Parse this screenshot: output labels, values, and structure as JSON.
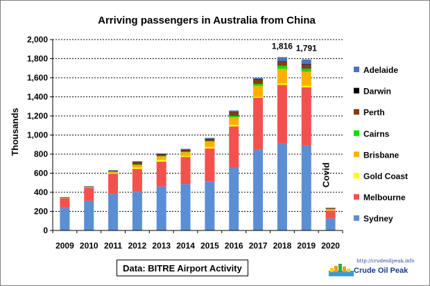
{
  "chart_data": {
    "type": "bar",
    "stacked": true,
    "title": "Arriving passengers in Australia from China",
    "ylabel": "Thousands",
    "xlabel": "",
    "ylim": [
      0,
      2000
    ],
    "yticks": [
      "0",
      "200",
      "400",
      "600",
      "800",
      "1,000",
      "1,200",
      "1,400",
      "1,600",
      "1,800",
      "2,000"
    ],
    "categories": [
      "2009",
      "2010",
      "2011",
      "2012",
      "2013",
      "2014",
      "2015",
      "2016",
      "2017",
      "2018",
      "2019",
      "2020"
    ],
    "series": [
      {
        "name": "Sydney",
        "color": "#5b8fd4",
        "values": [
          235,
          310,
          385,
          405,
          460,
          485,
          515,
          655,
          845,
          910,
          890,
          125
        ]
      },
      {
        "name": "Melbourne",
        "color": "#f4514e",
        "values": [
          105,
          140,
          210,
          240,
          260,
          285,
          345,
          435,
          545,
          615,
          610,
          85
        ]
      },
      {
        "name": "Gold Coast",
        "color": "#ffff00",
        "values": [
          3,
          3,
          5,
          15,
          20,
          10,
          15,
          15,
          10,
          15,
          15,
          3
        ]
      },
      {
        "name": "Brisbane",
        "color": "#ffb000",
        "values": [
          2,
          4,
          15,
          28,
          35,
          40,
          55,
          80,
          115,
          155,
          150,
          10
        ]
      },
      {
        "name": "Cairns",
        "color": "#00e000",
        "values": [
          0,
          1,
          2,
          3,
          5,
          5,
          8,
          15,
          20,
          30,
          30,
          3
        ]
      },
      {
        "name": "Perth",
        "color": "#8b3a0f",
        "values": [
          2,
          2,
          8,
          25,
          18,
          20,
          20,
          40,
          45,
          45,
          45,
          8
        ]
      },
      {
        "name": "Darwin",
        "color": "#000000",
        "values": [
          0,
          0,
          0,
          1,
          1,
          1,
          1,
          2,
          2,
          2,
          2,
          0
        ]
      },
      {
        "name": "Adelaide",
        "color": "#4a74c0",
        "values": [
          3,
          5,
          7,
          8,
          8,
          9,
          11,
          15,
          18,
          44,
          49,
          5
        ]
      }
    ],
    "data_labels": [
      {
        "category": "2018",
        "text": "1,816"
      },
      {
        "category": "2019",
        "text": "1,791"
      }
    ],
    "annotations": [
      {
        "category": "2020",
        "text": "Covid"
      }
    ],
    "legend_order": [
      "Adelaide",
      "Darwin",
      "Perth",
      "Cairns",
      "Brisbane",
      "Gold Coast",
      "Melbourne",
      "Sydney"
    ],
    "legend_position": "right",
    "grid": true
  },
  "source_label": "Data: BITRE Airport Activity",
  "logo": {
    "url": "http://crudeoilpeak.info",
    "name": "Crude Oil Peak"
  }
}
